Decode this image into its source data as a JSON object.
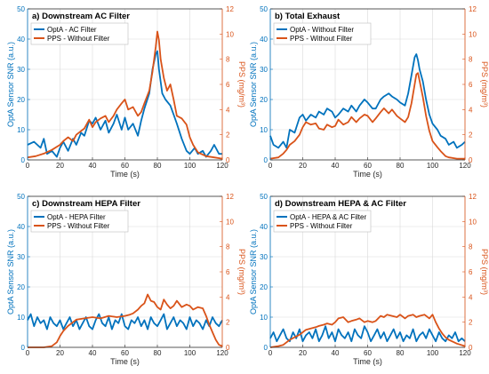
{
  "colors": {
    "opta": "#0072BD",
    "pps": "#D95319",
    "grid": "#d9d9d9",
    "axis": "#262626"
  },
  "chart_data": [
    {
      "type": "line",
      "title": "a) Downstream AC Filter",
      "xlabel": "Time (s)",
      "ylabel_left": "OptA Sensor SNR (a.u.)",
      "ylabel_right": "PPS (mg/m³)",
      "xlim": [
        0,
        120
      ],
      "ylim_left": [
        0,
        50
      ],
      "ylim_right": [
        0,
        12
      ],
      "xticks": [
        "0",
        "20",
        "40",
        "60",
        "80",
        "100",
        "120"
      ],
      "yticks_left": [
        "0",
        "10",
        "20",
        "30",
        "40",
        "50"
      ],
      "yticks_right": [
        "0",
        "2",
        "4",
        "6",
        "8",
        "10",
        "12"
      ],
      "grid": true,
      "legend": "top-left",
      "series": [
        {
          "name": "OptA - AC Filter",
          "axis": "left",
          "x": [
            0,
            4,
            8,
            10,
            12,
            15,
            18,
            20,
            22,
            25,
            28,
            30,
            33,
            35,
            38,
            40,
            42,
            45,
            48,
            50,
            53,
            55,
            58,
            60,
            62,
            65,
            68,
            70,
            72,
            75,
            77,
            79,
            80,
            81,
            83,
            85,
            88,
            90,
            92,
            95,
            98,
            100,
            103,
            105,
            108,
            110,
            113,
            115,
            118,
            120
          ],
          "y": [
            5,
            6,
            4,
            7,
            2,
            3,
            1,
            4,
            6,
            3,
            7,
            5,
            9,
            8,
            13,
            12,
            14,
            10,
            13,
            9,
            12,
            15,
            10,
            14,
            10,
            12,
            8,
            13,
            17,
            22,
            30,
            35,
            36,
            30,
            22,
            20,
            18,
            15,
            12,
            7,
            3,
            2,
            4,
            2,
            3,
            1,
            3,
            5,
            2,
            2
          ]
        },
        {
          "name": "PPS  - Without Filter",
          "axis": "right",
          "x": [
            0,
            5,
            10,
            15,
            20,
            22,
            25,
            28,
            30,
            33,
            35,
            38,
            40,
            42,
            45,
            48,
            50,
            53,
            55,
            58,
            60,
            62,
            65,
            68,
            70,
            72,
            75,
            77,
            79,
            80,
            81,
            82,
            84,
            86,
            88,
            90,
            92,
            95,
            98,
            100,
            102,
            105,
            110,
            115,
            120
          ],
          "y": [
            0.2,
            0.3,
            0.5,
            0.8,
            1.2,
            1.5,
            1.8,
            1.5,
            2.0,
            2.3,
            2.5,
            3.2,
            2.6,
            3.0,
            3.3,
            3.5,
            3.0,
            3.5,
            4.0,
            4.5,
            4.8,
            4.0,
            4.2,
            3.5,
            3.8,
            4.5,
            5.5,
            7.0,
            9.0,
            10.2,
            9.5,
            8.0,
            6.5,
            5.5,
            6.0,
            4.8,
            3.5,
            3.3,
            2.8,
            1.8,
            1.2,
            0.6,
            0.3,
            0.2,
            0.1
          ]
        }
      ]
    },
    {
      "type": "line",
      "title": "b) Total Exhaust",
      "xlabel": "Time (s)",
      "ylabel_left": "OptA Sensor SNR (a.u.)",
      "ylabel_right": "PPS (mg/m³)",
      "xlim": [
        0,
        120
      ],
      "ylim_left": [
        0,
        50
      ],
      "ylim_right": [
        0,
        12
      ],
      "xticks": [
        "0",
        "20",
        "40",
        "60",
        "80",
        "100",
        "120"
      ],
      "yticks_left": [
        "0",
        "10",
        "20",
        "30",
        "40",
        "50"
      ],
      "yticks_right": [
        "0",
        "2",
        "4",
        "6",
        "8",
        "10",
        "12"
      ],
      "grid": true,
      "legend": "top-left",
      "series": [
        {
          "name": "OptA - Without Filter",
          "axis": "left",
          "x": [
            0,
            2,
            5,
            8,
            10,
            12,
            15,
            18,
            20,
            22,
            25,
            28,
            30,
            33,
            35,
            38,
            40,
            42,
            45,
            48,
            50,
            53,
            55,
            58,
            60,
            63,
            65,
            68,
            70,
            73,
            75,
            78,
            80,
            83,
            85,
            87,
            89,
            90,
            91,
            92,
            94,
            96,
            98,
            100,
            103,
            105,
            108,
            110,
            113,
            115,
            118,
            120
          ],
          "y": [
            8,
            5,
            4,
            6,
            4,
            10,
            9,
            14,
            15,
            13,
            15,
            14,
            16,
            15,
            17,
            16,
            14,
            15,
            17,
            16,
            18,
            16,
            18,
            20,
            19,
            17,
            17,
            20,
            21,
            22,
            21,
            20,
            19,
            18,
            22,
            28,
            34,
            35,
            33,
            30,
            26,
            20,
            15,
            12,
            10,
            8,
            7,
            5,
            6,
            4,
            5,
            6
          ]
        },
        {
          "name": "PPS  - Without Filter",
          "axis": "right",
          "x": [
            0,
            5,
            8,
            10,
            12,
            15,
            18,
            20,
            22,
            25,
            28,
            30,
            33,
            35,
            38,
            40,
            42,
            45,
            48,
            50,
            53,
            55,
            58,
            60,
            63,
            65,
            68,
            70,
            73,
            75,
            78,
            80,
            83,
            85,
            87,
            89,
            90,
            91,
            92,
            94,
            96,
            98,
            100,
            103,
            105,
            108,
            110,
            115,
            120
          ],
          "y": [
            0.1,
            0.2,
            0.5,
            0.8,
            1.2,
            1.5,
            2.0,
            2.6,
            3.0,
            2.8,
            2.9,
            2.5,
            2.4,
            2.8,
            2.6,
            2.7,
            3.2,
            2.8,
            3.0,
            3.4,
            3.0,
            3.3,
            3.6,
            3.5,
            3.0,
            3.3,
            3.8,
            4.1,
            3.7,
            4.0,
            3.5,
            3.3,
            3.0,
            3.4,
            4.5,
            6.0,
            6.8,
            6.9,
            6.3,
            5.0,
            3.5,
            2.3,
            1.5,
            1.0,
            0.7,
            0.3,
            0.2,
            0.1,
            0.1
          ]
        }
      ]
    },
    {
      "type": "line",
      "title": "c) Downstream HEPA Filter",
      "xlabel": "Time (s)",
      "ylabel_left": "OptA Sensor SNR (a.u.)",
      "ylabel_right": "PPS (mg/m³)",
      "xlim": [
        0,
        120
      ],
      "ylim_left": [
        0,
        50
      ],
      "ylim_right": [
        0,
        12
      ],
      "xticks": [
        "0",
        "20",
        "40",
        "60",
        "80",
        "100",
        "120"
      ],
      "yticks_left": [
        "0",
        "10",
        "20",
        "30",
        "40",
        "50"
      ],
      "yticks_right": [
        "0",
        "2",
        "4",
        "6",
        "8",
        "10",
        "12"
      ],
      "grid": true,
      "legend": "top-left",
      "series": [
        {
          "name": "OptA - HEPA Filter",
          "axis": "left",
          "x": [
            0,
            2,
            4,
            6,
            8,
            10,
            12,
            14,
            16,
            18,
            20,
            22,
            24,
            26,
            28,
            30,
            32,
            34,
            36,
            38,
            40,
            42,
            44,
            46,
            48,
            50,
            52,
            54,
            56,
            58,
            60,
            62,
            64,
            66,
            68,
            70,
            72,
            74,
            76,
            78,
            80,
            82,
            84,
            86,
            88,
            90,
            92,
            94,
            96,
            98,
            100,
            102,
            104,
            106,
            108,
            110,
            112,
            114,
            116,
            118,
            120
          ],
          "y": [
            9,
            11,
            7,
            10,
            8,
            9,
            6,
            10,
            8,
            7,
            9,
            6,
            8,
            10,
            7,
            9,
            6,
            8,
            10,
            7,
            6,
            9,
            11,
            8,
            7,
            10,
            6,
            9,
            8,
            11,
            7,
            6,
            9,
            8,
            10,
            7,
            9,
            6,
            10,
            8,
            7,
            9,
            11,
            6,
            8,
            10,
            7,
            9,
            8,
            6,
            10,
            7,
            9,
            8,
            6,
            9,
            7,
            10,
            8,
            7,
            9
          ]
        },
        {
          "name": "PPS  - Without Filter",
          "axis": "right",
          "x": [
            0,
            5,
            10,
            15,
            18,
            20,
            22,
            25,
            28,
            30,
            35,
            40,
            45,
            50,
            55,
            60,
            63,
            65,
            68,
            70,
            72,
            74,
            76,
            78,
            80,
            82,
            84,
            86,
            88,
            90,
            92,
            95,
            98,
            100,
            102,
            105,
            108,
            110,
            112,
            114,
            116,
            118,
            120
          ],
          "y": [
            0,
            0,
            0,
            0.1,
            0.4,
            0.9,
            1.3,
            1.7,
            2.0,
            2.2,
            2.3,
            2.4,
            2.3,
            2.5,
            2.4,
            2.5,
            2.6,
            2.7,
            3.0,
            3.3,
            3.5,
            4.2,
            3.7,
            3.6,
            3.2,
            3.0,
            3.8,
            3.4,
            3.1,
            3.3,
            3.7,
            3.2,
            3.4,
            3.3,
            3.0,
            3.2,
            3.1,
            2.5,
            1.8,
            1.2,
            0.6,
            0.2,
            0.1
          ]
        }
      ]
    },
    {
      "type": "line",
      "title": "d) Downstream HEPA & AC Filter",
      "xlabel": "Time (s)",
      "ylabel_left": "OptA Sensor SNR (a.u.)",
      "ylabel_right": "PPS (mg/m³)",
      "xlim": [
        0,
        120
      ],
      "ylim_left": [
        0,
        50
      ],
      "ylim_right": [
        0,
        12
      ],
      "xticks": [
        "0",
        "20",
        "40",
        "60",
        "80",
        "100",
        "120"
      ],
      "yticks_left": [
        "0",
        "10",
        "20",
        "30",
        "40",
        "50"
      ],
      "yticks_right": [
        "0",
        "2",
        "4",
        "6",
        "8",
        "10",
        "12"
      ],
      "grid": true,
      "legend": "top-left",
      "series": [
        {
          "name": "OptA - HEPA & AC Filter",
          "axis": "left",
          "x": [
            0,
            2,
            4,
            6,
            8,
            10,
            12,
            14,
            16,
            18,
            20,
            22,
            24,
            26,
            28,
            30,
            32,
            34,
            36,
            38,
            40,
            42,
            44,
            46,
            48,
            50,
            52,
            54,
            56,
            58,
            60,
            62,
            64,
            66,
            68,
            70,
            72,
            74,
            76,
            78,
            80,
            82,
            84,
            86,
            88,
            90,
            92,
            94,
            96,
            98,
            100,
            102,
            104,
            106,
            108,
            110,
            112,
            114,
            116,
            118,
            120
          ],
          "y": [
            3,
            5,
            2,
            4,
            6,
            3,
            2,
            5,
            3,
            6,
            2,
            4,
            5,
            3,
            6,
            2,
            4,
            7,
            3,
            5,
            2,
            6,
            4,
            3,
            5,
            2,
            6,
            4,
            3,
            7,
            5,
            2,
            4,
            6,
            3,
            5,
            2,
            4,
            6,
            3,
            5,
            2,
            4,
            3,
            6,
            2,
            4,
            5,
            3,
            6,
            4,
            2,
            5,
            3,
            2,
            4,
            3,
            5,
            2,
            3,
            2
          ]
        },
        {
          "name": "PPS  - Without Filter",
          "axis": "right",
          "x": [
            0,
            5,
            8,
            10,
            12,
            15,
            18,
            20,
            22,
            25,
            28,
            30,
            33,
            35,
            38,
            40,
            42,
            45,
            48,
            50,
            53,
            55,
            58,
            60,
            63,
            65,
            68,
            70,
            72,
            75,
            78,
            80,
            83,
            85,
            88,
            90,
            92,
            95,
            98,
            100,
            102,
            104,
            106,
            108,
            110,
            115,
            120
          ],
          "y": [
            0,
            0.1,
            0.2,
            0.4,
            0.6,
            0.8,
            1.0,
            1.2,
            1.4,
            1.5,
            1.6,
            1.7,
            1.8,
            1.9,
            1.8,
            2.0,
            2.3,
            2.4,
            2.0,
            2.1,
            2.2,
            2.3,
            2.0,
            2.1,
            2.0,
            2.1,
            2.5,
            2.4,
            2.6,
            2.5,
            2.4,
            2.6,
            2.3,
            2.5,
            2.6,
            2.4,
            2.5,
            2.6,
            2.3,
            2.6,
            2.0,
            1.5,
            1.1,
            0.8,
            0.6,
            0.3,
            0.1
          ]
        }
      ]
    }
  ]
}
